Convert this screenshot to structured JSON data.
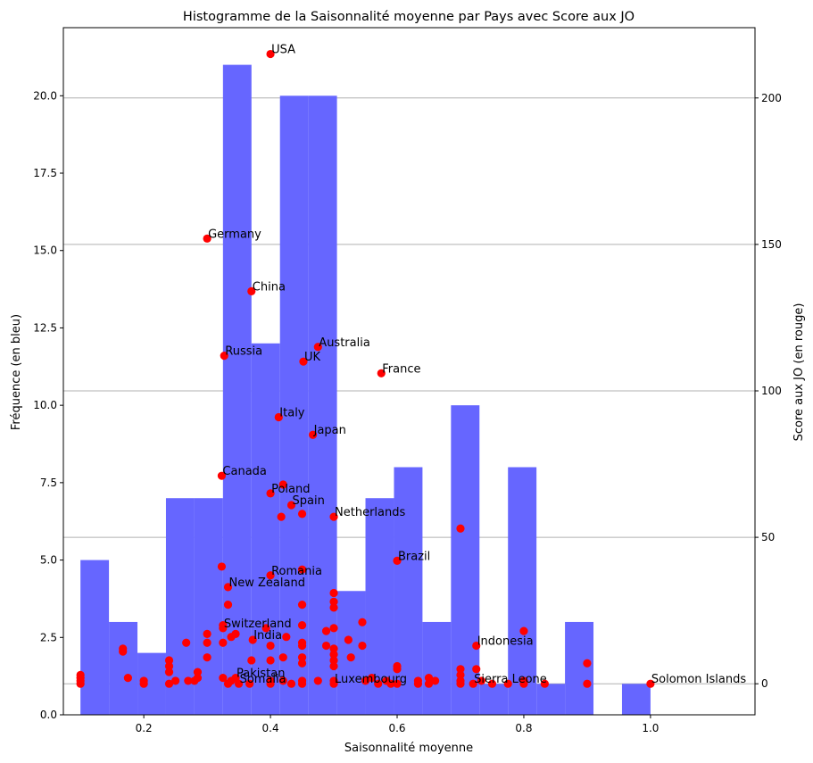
{
  "chart_data": {
    "type": "bar",
    "title": "Histogramme de la Saisonnalité moyenne par Pays avec Score aux JO",
    "xlabel": "Saisonnalité moyenne",
    "ylabel": "Fréquence (en bleu)",
    "y2label": "Score aux JO (en rouge)",
    "xlim": [
      0.073,
      1.165
    ],
    "ylim": [
      0,
      22.2
    ],
    "y2lim": [
      -10.6,
      224
    ],
    "xticks": [
      0.2,
      0.4,
      0.6,
      0.8,
      1.0
    ],
    "xtick_labels": [
      "0.2",
      "0.4",
      "0.6",
      "0.8",
      "1.0"
    ],
    "yticks": [
      0.0,
      2.5,
      5.0,
      7.5,
      10.0,
      12.5,
      15.0,
      17.5,
      20.0
    ],
    "ytick_labels": [
      "0.0",
      "2.5",
      "5.0",
      "7.5",
      "10.0",
      "12.5",
      "15.0",
      "17.5",
      "20.0"
    ],
    "y2ticks": [
      0,
      50,
      100,
      150,
      200
    ],
    "y2tick_labels": [
      "0",
      "50",
      "100",
      "150",
      "200"
    ],
    "grid": "horizontal lines at right-axis ticks",
    "bar_color": "#6666ff",
    "point_color": "#ff0000",
    "histogram": {
      "name": "Fréquence",
      "bin_edges": [
        0.1,
        0.145,
        0.19,
        0.235,
        0.28,
        0.325,
        0.37,
        0.415,
        0.46,
        0.505,
        0.55,
        0.595,
        0.64,
        0.685,
        0.73,
        0.775,
        0.82,
        0.865,
        0.91,
        0.955,
        1.0
      ],
      "counts": [
        5,
        3,
        2,
        7,
        7,
        21,
        12,
        20,
        20,
        4,
        7,
        8,
        3,
        10,
        1,
        8,
        1,
        3,
        0,
        1
      ]
    },
    "scatter": {
      "name": "Score aux JO",
      "points": [
        {
          "x": 0.4,
          "y": 215,
          "label": "USA"
        },
        {
          "x": 0.3,
          "y": 152,
          "label": "Germany"
        },
        {
          "x": 0.37,
          "y": 134,
          "label": "China"
        },
        {
          "x": 0.475,
          "y": 115,
          "label": "Australia"
        },
        {
          "x": 0.327,
          "y": 112,
          "label": "Russia"
        },
        {
          "x": 0.452,
          "y": 110,
          "label": "UK"
        },
        {
          "x": 0.575,
          "y": 106,
          "label": "France"
        },
        {
          "x": 0.413,
          "y": 91,
          "label": "Italy"
        },
        {
          "x": 0.467,
          "y": 85,
          "label": "Japan"
        },
        {
          "x": 0.323,
          "y": 71,
          "label": "Canada"
        },
        {
          "x": 0.4,
          "y": 65,
          "label": "Poland"
        },
        {
          "x": 0.433,
          "y": 61,
          "label": "Spain"
        },
        {
          "x": 0.5,
          "y": 57,
          "label": "Netherlands"
        },
        {
          "x": 0.6,
          "y": 42,
          "label": "Brazil"
        },
        {
          "x": 0.4,
          "y": 37,
          "label": "Romania"
        },
        {
          "x": 0.333,
          "y": 33,
          "label": "New Zealand"
        },
        {
          "x": 0.325,
          "y": 19,
          "label": "Switzerland"
        },
        {
          "x": 0.372,
          "y": 15,
          "label": "India"
        },
        {
          "x": 0.725,
          "y": 13,
          "label": "Indonesia"
        },
        {
          "x": 0.345,
          "y": 2,
          "label": "Pakistan"
        },
        {
          "x": 0.35,
          "y": 0,
          "label": "Somalia"
        },
        {
          "x": 0.5,
          "y": 0,
          "label": "Luxembourg"
        },
        {
          "x": 0.72,
          "y": 0,
          "label": "Sierra Leone"
        },
        {
          "x": 1.0,
          "y": 0,
          "label": "Solomon Islands"
        },
        {
          "x": 0.42,
          "y": 68,
          "label": ""
        },
        {
          "x": 0.417,
          "y": 57,
          "label": ""
        },
        {
          "x": 0.45,
          "y": 58,
          "label": ""
        },
        {
          "x": 0.7,
          "y": 53,
          "label": ""
        },
        {
          "x": 0.323,
          "y": 40,
          "label": ""
        },
        {
          "x": 0.45,
          "y": 39,
          "label": ""
        },
        {
          "x": 0.5,
          "y": 31,
          "label": ""
        },
        {
          "x": 0.5,
          "y": 28,
          "label": ""
        },
        {
          "x": 0.5,
          "y": 26,
          "label": ""
        },
        {
          "x": 0.333,
          "y": 27,
          "label": ""
        },
        {
          "x": 0.45,
          "y": 27,
          "label": ""
        },
        {
          "x": 0.545,
          "y": 21,
          "label": ""
        },
        {
          "x": 0.5,
          "y": 19,
          "label": ""
        },
        {
          "x": 0.45,
          "y": 20,
          "label": ""
        },
        {
          "x": 0.8,
          "y": 18,
          "label": ""
        },
        {
          "x": 0.3,
          "y": 17,
          "label": ""
        },
        {
          "x": 0.325,
          "y": 20,
          "label": ""
        },
        {
          "x": 0.345,
          "y": 17,
          "label": ""
        },
        {
          "x": 0.393,
          "y": 19,
          "label": ""
        },
        {
          "x": 0.425,
          "y": 16,
          "label": ""
        },
        {
          "x": 0.488,
          "y": 18,
          "label": ""
        },
        {
          "x": 0.523,
          "y": 15,
          "label": ""
        },
        {
          "x": 0.338,
          "y": 16,
          "label": ""
        },
        {
          "x": 0.3,
          "y": 14,
          "label": ""
        },
        {
          "x": 0.325,
          "y": 14,
          "label": ""
        },
        {
          "x": 0.267,
          "y": 14,
          "label": ""
        },
        {
          "x": 0.4,
          "y": 13,
          "label": ""
        },
        {
          "x": 0.45,
          "y": 14,
          "label": ""
        },
        {
          "x": 0.45,
          "y": 13,
          "label": ""
        },
        {
          "x": 0.488,
          "y": 13,
          "label": ""
        },
        {
          "x": 0.5,
          "y": 12,
          "label": ""
        },
        {
          "x": 0.545,
          "y": 13,
          "label": ""
        },
        {
          "x": 0.167,
          "y": 12,
          "label": ""
        },
        {
          "x": 0.167,
          "y": 11,
          "label": ""
        },
        {
          "x": 0.5,
          "y": 10,
          "label": ""
        },
        {
          "x": 0.45,
          "y": 9,
          "label": ""
        },
        {
          "x": 0.5,
          "y": 8,
          "label": ""
        },
        {
          "x": 0.527,
          "y": 9,
          "label": ""
        },
        {
          "x": 0.24,
          "y": 8,
          "label": ""
        },
        {
          "x": 0.24,
          "y": 6,
          "label": ""
        },
        {
          "x": 0.24,
          "y": 4,
          "label": ""
        },
        {
          "x": 0.3,
          "y": 9,
          "label": ""
        },
        {
          "x": 0.42,
          "y": 9,
          "label": ""
        },
        {
          "x": 0.37,
          "y": 8,
          "label": ""
        },
        {
          "x": 0.4,
          "y": 8,
          "label": ""
        },
        {
          "x": 0.45,
          "y": 7,
          "label": ""
        },
        {
          "x": 0.5,
          "y": 6,
          "label": ""
        },
        {
          "x": 0.6,
          "y": 6,
          "label": ""
        },
        {
          "x": 0.6,
          "y": 5,
          "label": ""
        },
        {
          "x": 0.7,
          "y": 5,
          "label": ""
        },
        {
          "x": 0.725,
          "y": 5,
          "label": ""
        },
        {
          "x": 0.9,
          "y": 7,
          "label": ""
        },
        {
          "x": 0.285,
          "y": 4,
          "label": ""
        },
        {
          "x": 0.1,
          "y": 3,
          "label": ""
        },
        {
          "x": 0.1,
          "y": 2,
          "label": ""
        },
        {
          "x": 0.1,
          "y": 1,
          "label": ""
        },
        {
          "x": 0.1,
          "y": 0,
          "label": ""
        },
        {
          "x": 0.175,
          "y": 2,
          "label": ""
        },
        {
          "x": 0.2,
          "y": 1,
          "label": ""
        },
        {
          "x": 0.2,
          "y": 0,
          "label": ""
        },
        {
          "x": 0.24,
          "y": 0,
          "label": ""
        },
        {
          "x": 0.25,
          "y": 1,
          "label": ""
        },
        {
          "x": 0.27,
          "y": 1,
          "label": ""
        },
        {
          "x": 0.28,
          "y": 1,
          "label": ""
        },
        {
          "x": 0.285,
          "y": 2,
          "label": ""
        },
        {
          "x": 0.325,
          "y": 2,
          "label": ""
        },
        {
          "x": 0.333,
          "y": 0,
          "label": ""
        },
        {
          "x": 0.338,
          "y": 1,
          "label": ""
        },
        {
          "x": 0.367,
          "y": 0,
          "label": ""
        },
        {
          "x": 0.4,
          "y": 1,
          "label": ""
        },
        {
          "x": 0.4,
          "y": 0,
          "label": ""
        },
        {
          "x": 0.42,
          "y": 1,
          "label": ""
        },
        {
          "x": 0.433,
          "y": 0,
          "label": ""
        },
        {
          "x": 0.45,
          "y": 1,
          "label": ""
        },
        {
          "x": 0.45,
          "y": 0,
          "label": ""
        },
        {
          "x": 0.475,
          "y": 1,
          "label": ""
        },
        {
          "x": 0.5,
          "y": 1,
          "label": ""
        },
        {
          "x": 0.55,
          "y": 1,
          "label": ""
        },
        {
          "x": 0.56,
          "y": 2,
          "label": ""
        },
        {
          "x": 0.57,
          "y": 0,
          "label": ""
        },
        {
          "x": 0.583,
          "y": 1,
          "label": ""
        },
        {
          "x": 0.59,
          "y": 0,
          "label": ""
        },
        {
          "x": 0.6,
          "y": 0,
          "label": ""
        },
        {
          "x": 0.633,
          "y": 1,
          "label": ""
        },
        {
          "x": 0.633,
          "y": 0,
          "label": ""
        },
        {
          "x": 0.65,
          "y": 2,
          "label": ""
        },
        {
          "x": 0.65,
          "y": 0,
          "label": ""
        },
        {
          "x": 0.66,
          "y": 1,
          "label": ""
        },
        {
          "x": 0.7,
          "y": 3,
          "label": ""
        },
        {
          "x": 0.7,
          "y": 1,
          "label": ""
        },
        {
          "x": 0.7,
          "y": 0,
          "label": ""
        },
        {
          "x": 0.733,
          "y": 1,
          "label": ""
        },
        {
          "x": 0.75,
          "y": 0,
          "label": ""
        },
        {
          "x": 0.775,
          "y": 0,
          "label": ""
        },
        {
          "x": 0.8,
          "y": 1,
          "label": ""
        },
        {
          "x": 0.8,
          "y": 0,
          "label": ""
        },
        {
          "x": 0.833,
          "y": 0,
          "label": ""
        },
        {
          "x": 0.9,
          "y": 0,
          "label": ""
        }
      ]
    }
  }
}
